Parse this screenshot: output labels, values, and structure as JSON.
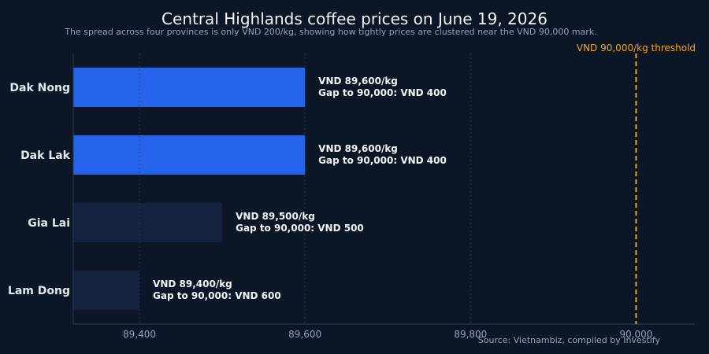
{
  "chart_data": {
    "type": "bar",
    "orientation": "horizontal",
    "title": "Central Highlands coffee prices on June 19, 2026",
    "subtitle": "The spread across four provinces is only VND 200/kg, showing how tightly prices are clustered near the VND 90,000 mark.",
    "source": "Source: Vietnambiz, compiled by Investify",
    "categories": [
      "Dak Nong",
      "Dak Lak",
      "Gia Lai",
      "Lam Dong"
    ],
    "values": [
      89600,
      89600,
      89500,
      89400
    ],
    "value_labels": [
      "VND 89,600/kg",
      "VND 89,600/kg",
      "VND 89,500/kg",
      "VND 89,400/kg"
    ],
    "gap_labels": [
      "Gap to 90,000: VND 400",
      "Gap to 90,000: VND 400",
      "Gap to 90,000: VND 500",
      "Gap to 90,000: VND 600"
    ],
    "bar_colors": [
      "#2563eb",
      "#2563eb",
      "#13233d",
      "#13233d"
    ],
    "xlim": [
      89320,
      90070
    ],
    "xticks": [
      89400,
      89600,
      89800,
      90000
    ],
    "xtick_labels": [
      "89,400",
      "89,600",
      "89,800",
      "90,000"
    ],
    "threshold": {
      "value": 90000,
      "label": "VND 90,000/kg threshold",
      "color": "#f5a524"
    },
    "xlabel": "",
    "ylabel": "",
    "grid": true
  }
}
